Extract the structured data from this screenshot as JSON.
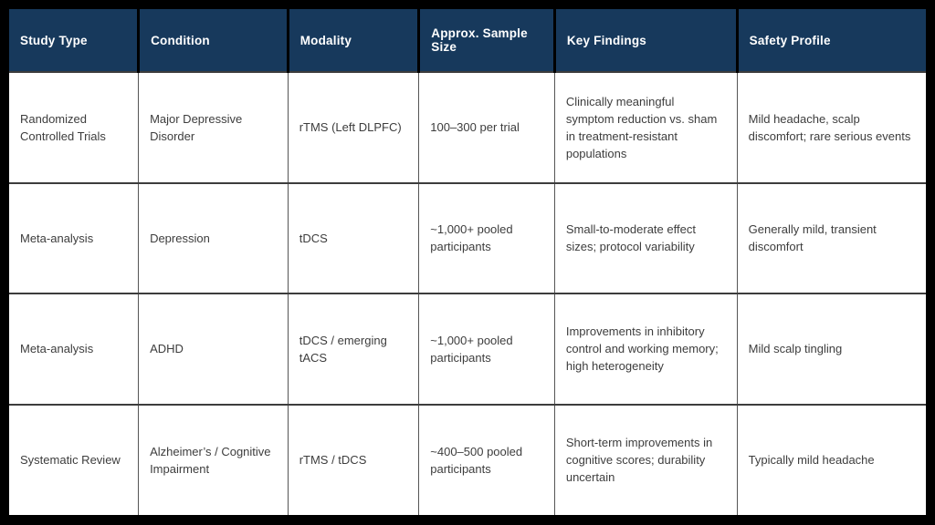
{
  "colors": {
    "header_bg": "#17395c",
    "header_text": "#ffffff",
    "body_text": "#3d3d3d",
    "frame": "#000000",
    "grid": "#555555"
  },
  "table": {
    "columns": [
      "Study Type",
      "Condition",
      "Modality",
      "Approx. Sample Size",
      "Key Findings",
      "Safety Profile"
    ],
    "rows": [
      [
        "Randomized Controlled Trials",
        "Major Depressive Disorder",
        "rTMS (Left DLPFC)",
        "100–300 per trial",
        "Clinically meaningful symptom reduction vs. sham in treatment-resistant populations",
        "Mild headache, scalp discomfort; rare serious events"
      ],
      [
        "Meta-analysis",
        "Depression",
        "tDCS",
        "~1,000+ pooled participants",
        "Small-to-moderate effect sizes; protocol variability",
        "Generally mild, transient discomfort"
      ],
      [
        "Meta-analysis",
        "ADHD",
        "tDCS / emerging tACS",
        "~1,000+ pooled participants",
        "Improvements in inhibitory control and working memory; high heterogeneity",
        "Mild scalp tingling"
      ],
      [
        "Systematic Review",
        "Alzheimer’s / Cognitive Impairment",
        "rTMS / tDCS",
        "~400–500 pooled participants",
        "Short-term improvements in cognitive scores; durability uncertain",
        "Typically mild headache"
      ]
    ]
  }
}
